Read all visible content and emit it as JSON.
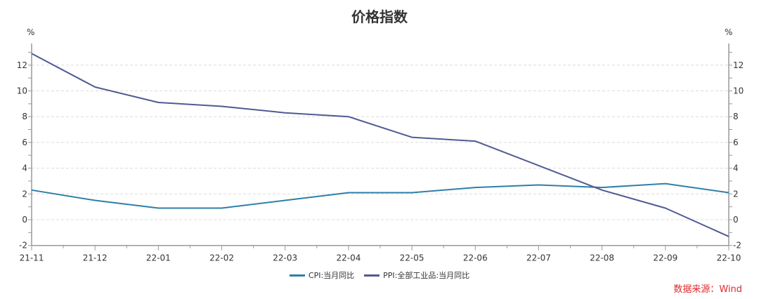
{
  "title": "价格指数",
  "axes": {
    "left_unit": "%",
    "right_unit": "%",
    "y_ticks": [
      12,
      10,
      8,
      6,
      4,
      2,
      0,
      -2
    ]
  },
  "legend": [
    {
      "label": "CPI:当月同比",
      "color": "#2f7fa8"
    },
    {
      "label": "PPI:全部工业品:当月同比",
      "color": "#4f5b93"
    }
  ],
  "source": "数据来源：Wind",
  "chart_data": {
    "type": "line",
    "title": "价格指数",
    "xlabel": "",
    "ylabel": "%",
    "y2label": "%",
    "ylim": [
      -2,
      13.5
    ],
    "grid": true,
    "legend_position": "bottom",
    "categories": [
      "21-11",
      "21-12",
      "22-01",
      "22-02",
      "22-03",
      "22-04",
      "22-05",
      "22-06",
      "22-07",
      "22-08",
      "22-09",
      "22-10"
    ],
    "series": [
      {
        "name": "CPI:当月同比",
        "color": "#2f7fa8",
        "values": [
          2.3,
          1.5,
          0.9,
          0.9,
          1.5,
          2.1,
          2.1,
          2.5,
          2.7,
          2.5,
          2.8,
          2.1
        ]
      },
      {
        "name": "PPI:全部工业品:当月同比",
        "color": "#4f5b93",
        "values": [
          12.9,
          10.3,
          9.1,
          8.8,
          8.3,
          8.0,
          6.4,
          6.1,
          4.2,
          2.3,
          0.9,
          -1.3
        ]
      }
    ]
  }
}
